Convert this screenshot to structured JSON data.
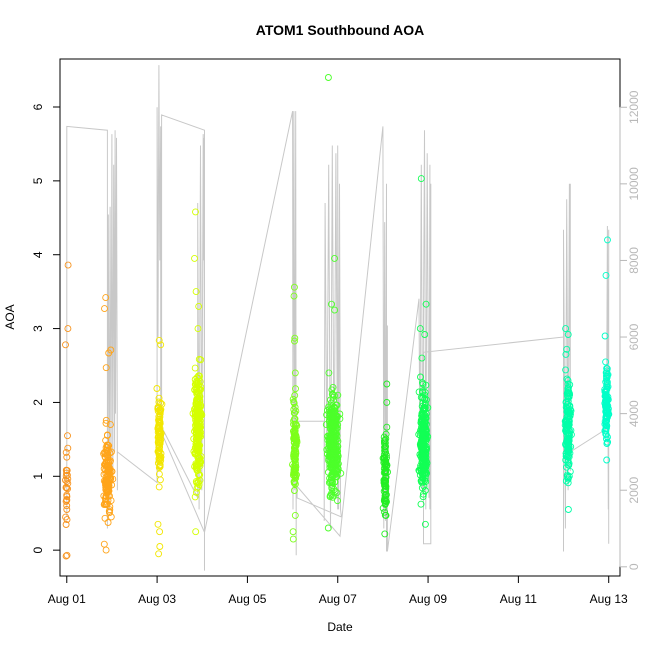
{
  "chart_data": {
    "type": "scatter",
    "title": "ATOM1 Southbound AOA",
    "xlabel": "Date",
    "ylabel": "AOA",
    "xlim": [
      -0.15,
      12.25
    ],
    "ylim": [
      -0.35,
      6.65
    ],
    "y2lim": [
      -240,
      13260
    ],
    "x_ticks": [
      {
        "day": 0,
        "label": "Aug 01"
      },
      {
        "day": 2,
        "label": "Aug 03"
      },
      {
        "day": 4,
        "label": "Aug 05"
      },
      {
        "day": 6,
        "label": "Aug 07"
      },
      {
        "day": 8,
        "label": "Aug 09"
      },
      {
        "day": 10,
        "label": "Aug 11"
      },
      {
        "day": 12,
        "label": "Aug 13"
      }
    ],
    "y_ticks": [
      0,
      1,
      2,
      3,
      4,
      5,
      6
    ],
    "y2_ticks": [
      0,
      2000,
      4000,
      6000,
      8000,
      10000,
      12000
    ],
    "grid": false,
    "legend": "none",
    "colors": {
      "line": "#c8c8c8",
      "right_axis": "#b8b8b8",
      "g1": "#f7931e",
      "g2": "#ffa41a",
      "g3": "#f2e600",
      "g4": "#d4ff00",
      "g5": "#7cff1a",
      "g6": "#4cff2a",
      "g7": "#22ee22",
      "g8": "#12ff55",
      "g9": "#00ffa8",
      "g10": "#00ffc8"
    },
    "point_clusters": [
      {
        "color_key": "g1",
        "x_center": 0.0,
        "x_spread": 0.03,
        "count": 22,
        "y_main": [
          0.2,
          1.5
        ],
        "outliers": [
          3.86,
          3.0,
          2.78,
          1.55,
          1.38,
          1.08,
          0.84,
          0.55,
          -0.07,
          -0.08
        ]
      },
      {
        "color_key": "g2",
        "x_center": 0.9,
        "x_spread": 0.09,
        "count": 130,
        "y_main": [
          0.3,
          1.7
        ],
        "outliers": [
          3.42,
          3.27,
          2.71,
          2.67,
          2.47,
          1.7,
          0.08,
          0.0
        ]
      },
      {
        "color_key": "g3",
        "x_center": 2.05,
        "x_spread": 0.05,
        "count": 90,
        "y_main": [
          0.8,
          2.3
        ],
        "outliers": [
          2.84,
          2.78,
          0.35,
          0.25,
          0.05,
          -0.05
        ]
      },
      {
        "color_key": "g4",
        "x_center": 2.9,
        "x_spread": 0.08,
        "count": 240,
        "y_main": [
          0.7,
          2.6
        ],
        "outliers": [
          4.58,
          3.95,
          3.5,
          3.3,
          3.0,
          0.25
        ]
      },
      {
        "color_key": "g5",
        "x_center": 5.05,
        "x_spread": 0.04,
        "count": 110,
        "y_main": [
          0.5,
          2.3
        ],
        "outliers": [
          3.56,
          3.44,
          2.87,
          2.83,
          2.4,
          0.25,
          0.15
        ]
      },
      {
        "color_key": "g6",
        "x_center": 5.9,
        "x_spread": 0.12,
        "count": 320,
        "y_main": [
          0.6,
          2.3
        ],
        "outliers": [
          6.4,
          3.95,
          3.33,
          3.25,
          2.4,
          0.3
        ]
      },
      {
        "color_key": "g7",
        "x_center": 7.05,
        "x_spread": 0.04,
        "count": 90,
        "y_main": [
          0.3,
          1.7
        ],
        "outliers": [
          2.25,
          2.0,
          0.22
        ]
      },
      {
        "color_key": "g8",
        "x_center": 7.9,
        "x_spread": 0.08,
        "count": 260,
        "y_main": [
          0.6,
          2.3
        ],
        "outliers": [
          5.03,
          3.33,
          3.0,
          2.92,
          2.6,
          0.35
        ]
      },
      {
        "color_key": "g9",
        "x_center": 11.1,
        "x_spread": 0.06,
        "count": 150,
        "y_main": [
          0.9,
          2.5
        ],
        "outliers": [
          3.0,
          2.92,
          2.72,
          2.65,
          0.55
        ]
      },
      {
        "color_key": "g10",
        "x_center": 11.95,
        "x_spread": 0.04,
        "count": 110,
        "y_main": [
          1.3,
          2.6
        ],
        "outliers": [
          4.2,
          3.72,
          2.9,
          1.22
        ]
      }
    ],
    "line_series": [
      {
        "day": 0.0,
        "value": 11500
      },
      {
        "day": 0.0,
        "value": 7500
      },
      {
        "day": 0.0,
        "value": 9500
      },
      {
        "day": 0.0,
        "value": 3500
      },
      {
        "day": 0.0,
        "value": 1300
      },
      {
        "day": 0.0,
        "value": 3100
      },
      {
        "day": 0.0,
        "value": 11500
      },
      {
        "day": 0.9,
        "value": 11400
      },
      {
        "day": 0.9,
        "value": 1000
      },
      {
        "day": 0.92,
        "value": 9200
      },
      {
        "day": 0.94,
        "value": 1500
      },
      {
        "day": 0.96,
        "value": 9400
      },
      {
        "day": 0.98,
        "value": 2000
      },
      {
        "day": 1.0,
        "value": 11300
      },
      {
        "day": 1.02,
        "value": 2500
      },
      {
        "day": 1.04,
        "value": 10500
      },
      {
        "day": 1.06,
        "value": 3000
      },
      {
        "day": 1.07,
        "value": 11400
      },
      {
        "day": 1.08,
        "value": 4000
      },
      {
        "day": 1.1,
        "value": 11200
      },
      {
        "day": 1.12,
        "value": 2000
      },
      {
        "day": 1.12,
        "value": 3000
      },
      {
        "day": 2.0,
        "value": 2200
      },
      {
        "day": 2.0,
        "value": 12000
      },
      {
        "day": 2.02,
        "value": 6000
      },
      {
        "day": 2.04,
        "value": 13100
      },
      {
        "day": 2.06,
        "value": 8000
      },
      {
        "day": 2.08,
        "value": 11500
      },
      {
        "day": 2.08,
        "value": 3700
      },
      {
        "day": 2.9,
        "value": 1800
      },
      {
        "day": 2.9,
        "value": 9500
      },
      {
        "day": 2.93,
        "value": 1500
      },
      {
        "day": 2.96,
        "value": 11000
      },
      {
        "day": 2.99,
        "value": 2000
      },
      {
        "day": 3.02,
        "value": 11300
      },
      {
        "day": 3.03,
        "value": 8000
      },
      {
        "day": 3.04,
        "value": 11200
      },
      {
        "day": 3.05,
        "value": -100
      },
      {
        "day": 3.05,
        "value": 11400
      },
      {
        "day": 2.1,
        "value": 11800
      },
      {
        "day": 2.1,
        "value": 3500
      },
      {
        "day": 3.05,
        "value": 900
      },
      {
        "day": 5.0,
        "value": 11900
      },
      {
        "day": 5.01,
        "value": 1500
      },
      {
        "day": 5.03,
        "value": 11900
      },
      {
        "day": 5.05,
        "value": 2000
      },
      {
        "day": 5.07,
        "value": 11900
      },
      {
        "day": 5.08,
        "value": 300
      },
      {
        "day": 5.08,
        "value": 3800
      },
      {
        "day": 5.7,
        "value": 3800
      },
      {
        "day": 5.7,
        "value": 1200
      },
      {
        "day": 5.72,
        "value": 9500
      },
      {
        "day": 5.76,
        "value": 2500
      },
      {
        "day": 5.8,
        "value": 10500
      },
      {
        "day": 5.84,
        "value": 1000
      },
      {
        "day": 5.88,
        "value": 11000
      },
      {
        "day": 5.92,
        "value": 2000
      },
      {
        "day": 5.96,
        "value": 10800
      },
      {
        "day": 6.0,
        "value": 1500
      },
      {
        "day": 6.0,
        "value": 11000
      },
      {
        "day": 6.02,
        "value": 1500
      },
      {
        "day": 6.04,
        "value": 10000
      },
      {
        "day": 6.06,
        "value": 1500
      },
      {
        "day": 6.08,
        "value": 1300
      },
      {
        "day": 5.1,
        "value": 1800
      },
      {
        "day": 5.1,
        "value": 2100
      },
      {
        "day": 6.05,
        "value": 800
      },
      {
        "day": 7.0,
        "value": 11500
      },
      {
        "day": 7.02,
        "value": 1000
      },
      {
        "day": 7.04,
        "value": 9000
      },
      {
        "day": 7.06,
        "value": 1200
      },
      {
        "day": 7.08,
        "value": 10000
      },
      {
        "day": 7.08,
        "value": 400
      },
      {
        "day": 7.1,
        "value": 6300
      },
      {
        "day": 7.1,
        "value": 400
      },
      {
        "day": 7.8,
        "value": 7000
      },
      {
        "day": 7.82,
        "value": 2800
      },
      {
        "day": 7.85,
        "value": 10500
      },
      {
        "day": 7.88,
        "value": 2000
      },
      {
        "day": 7.92,
        "value": 11400
      },
      {
        "day": 7.95,
        "value": 1500
      },
      {
        "day": 7.98,
        "value": 10800
      },
      {
        "day": 8.02,
        "value": 1800
      },
      {
        "day": 8.04,
        "value": 10500
      },
      {
        "day": 8.04,
        "value": 1500
      },
      {
        "day": 8.06,
        "value": 10000
      },
      {
        "day": 8.06,
        "value": 600
      },
      {
        "day": 7.9,
        "value": 600
      },
      {
        "day": 7.9,
        "value": 5600
      },
      {
        "day": 11.0,
        "value": 6000
      },
      {
        "day": 11.0,
        "value": 1500
      },
      {
        "day": 11.0,
        "value": 400
      },
      {
        "day": 11.0,
        "value": 8800
      },
      {
        "day": 11.04,
        "value": 1000
      },
      {
        "day": 11.07,
        "value": 9600
      },
      {
        "day": 11.1,
        "value": 2000
      },
      {
        "day": 11.13,
        "value": 10000
      },
      {
        "day": 11.15,
        "value": 2500
      },
      {
        "day": 11.15,
        "value": 10000
      },
      {
        "day": 11.15,
        "value": 3000
      },
      {
        "day": 11.95,
        "value": 3600
      },
      {
        "day": 11.97,
        "value": 8900
      },
      {
        "day": 11.99,
        "value": 1500
      },
      {
        "day": 12.0,
        "value": 8800
      },
      {
        "day": 12.0,
        "value": 600
      }
    ]
  }
}
